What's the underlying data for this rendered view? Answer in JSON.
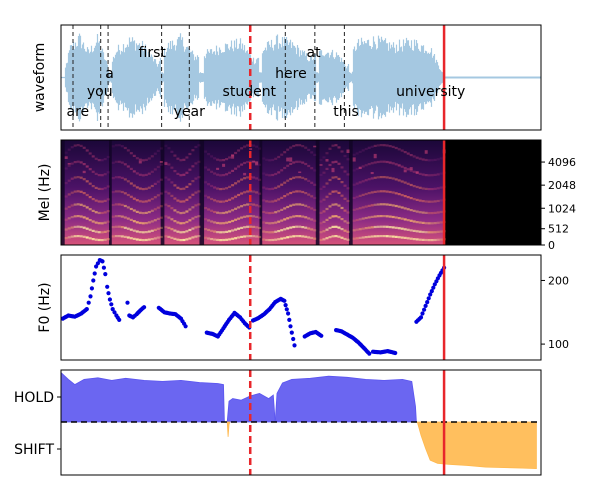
{
  "chart_data": [
    {
      "type": "line",
      "panel": "waveform",
      "ylabel": "waveform",
      "xlim": [
        0,
        5.2
      ],
      "words": [
        {
          "text": "are",
          "t": 0.06,
          "row": 3
        },
        {
          "text": "you",
          "t": 0.28,
          "row": 2
        },
        {
          "text": "a",
          "t": 0.48,
          "row": 1
        },
        {
          "text": "first",
          "t": 0.84,
          "row": 0
        },
        {
          "text": "year",
          "t": 1.22,
          "row": 3
        },
        {
          "text": "student",
          "t": 1.75,
          "row": 2
        },
        {
          "text": "here",
          "t": 2.32,
          "row": 1
        },
        {
          "text": "at",
          "t": 2.66,
          "row": 0
        },
        {
          "text": "this",
          "t": 2.95,
          "row": 3
        },
        {
          "text": "university",
          "t": 3.63,
          "row": 2
        }
      ],
      "boundaries": [
        0.13,
        0.43,
        0.51,
        1.09,
        1.39,
        2.43,
        2.75,
        3.07
      ],
      "vad_segments": [
        [
          0.04,
          0.52
        ],
        [
          0.55,
          1.08
        ],
        [
          1.12,
          1.5
        ],
        [
          1.55,
          2.15
        ],
        [
          2.18,
          2.76
        ],
        [
          2.8,
          3.12
        ],
        [
          3.16,
          4.15
        ]
      ],
      "amplitude_envelope": [
        [
          0.04,
          0.15
        ],
        [
          0.1,
          0.7
        ],
        [
          0.2,
          0.95
        ],
        [
          0.3,
          0.6
        ],
        [
          0.4,
          0.92
        ],
        [
          0.52,
          0.2
        ],
        [
          0.6,
          0.65
        ],
        [
          0.75,
          0.9
        ],
        [
          0.9,
          0.75
        ],
        [
          1.05,
          0.3
        ],
        [
          1.15,
          0.75
        ],
        [
          1.3,
          0.92
        ],
        [
          1.45,
          0.5
        ],
        [
          1.6,
          0.6
        ],
        [
          1.75,
          0.75
        ],
        [
          1.95,
          0.82
        ],
        [
          2.1,
          0.4
        ],
        [
          2.2,
          0.7
        ],
        [
          2.35,
          0.9
        ],
        [
          2.5,
          0.8
        ],
        [
          2.7,
          0.45
        ],
        [
          2.85,
          0.65
        ],
        [
          3.0,
          0.55
        ],
        [
          3.1,
          0.25
        ],
        [
          3.2,
          0.8
        ],
        [
          3.4,
          0.9
        ],
        [
          3.6,
          0.75
        ],
        [
          3.8,
          0.85
        ],
        [
          4.0,
          0.7
        ],
        [
          4.15,
          0.05
        ]
      ],
      "vlines": [
        {
          "t": 2.05,
          "style": "dashed",
          "color": "#e8262b"
        },
        {
          "t": 4.15,
          "style": "solid",
          "color": "#e8262b"
        }
      ]
    },
    {
      "type": "heatmap",
      "panel": "mel",
      "ylabel": "Mel (Hz)",
      "xlim": [
        0,
        5.2
      ],
      "yticks": [
        "0",
        "512",
        "1024",
        "2048",
        "4096"
      ],
      "ytick_fracs": [
        0.0,
        0.155,
        0.35,
        0.57,
        0.79
      ],
      "signal_end": 4.15,
      "vad_segments": [
        [
          0.04,
          0.52
        ],
        [
          0.55,
          1.08
        ],
        [
          1.12,
          1.5
        ],
        [
          1.55,
          2.15
        ],
        [
          2.18,
          2.76
        ],
        [
          2.8,
          3.12
        ],
        [
          3.16,
          4.15
        ]
      ],
      "vlines": [
        {
          "t": 2.05,
          "style": "dashed",
          "color": "#e8262b"
        },
        {
          "t": 4.15,
          "style": "solid",
          "color": "#e8262b"
        }
      ]
    },
    {
      "type": "scatter",
      "panel": "f0",
      "ylabel": "F0 (Hz)",
      "xlim": [
        0,
        5.2
      ],
      "ylim": [
        75,
        240
      ],
      "yticks": [
        100,
        200
      ],
      "marker_color": "#0000dd",
      "segments": [
        [
          [
            0.02,
            140
          ],
          [
            0.08,
            145
          ],
          [
            0.15,
            143
          ],
          [
            0.22,
            148
          ],
          [
            0.28,
            155
          ],
          [
            0.32,
            175
          ],
          [
            0.35,
            200
          ],
          [
            0.38,
            222
          ],
          [
            0.42,
            232
          ],
          [
            0.45,
            230
          ],
          [
            0.48,
            210
          ],
          [
            0.5,
            190
          ],
          [
            0.53,
            170
          ],
          [
            0.56,
            155
          ],
          [
            0.6,
            145
          ],
          [
            0.63,
            138
          ]
        ],
        [
          [
            0.72,
            165
          ]
        ],
        [
          [
            0.74,
            145
          ],
          [
            0.78,
            142
          ],
          [
            0.82,
            147
          ],
          [
            0.86,
            153
          ],
          [
            0.9,
            158
          ]
        ],
        [
          [
            1.06,
            157
          ],
          [
            1.12,
            150
          ],
          [
            1.18,
            148
          ],
          [
            1.24,
            147
          ],
          [
            1.3,
            140
          ],
          [
            1.35,
            128
          ]
        ],
        [
          [
            1.58,
            118
          ],
          [
            1.64,
            116
          ],
          [
            1.7,
            112
          ],
          [
            1.76,
            125
          ],
          [
            1.82,
            138
          ],
          [
            1.88,
            149
          ],
          [
            1.94,
            142
          ],
          [
            1.99,
            133
          ],
          [
            2.04,
            126
          ]
        ],
        [
          [
            2.08,
            137
          ],
          [
            2.14,
            141
          ],
          [
            2.2,
            147
          ],
          [
            2.26,
            155
          ],
          [
            2.32,
            166
          ],
          [
            2.38,
            171
          ],
          [
            2.42,
            168
          ],
          [
            2.46,
            148
          ],
          [
            2.5,
            118
          ],
          [
            2.53,
            98
          ]
        ],
        [
          [
            2.64,
            112
          ],
          [
            2.7,
            117
          ],
          [
            2.76,
            119
          ],
          [
            2.82,
            113
          ]
        ],
        [
          [
            2.98,
            122
          ],
          [
            3.04,
            120
          ],
          [
            3.1,
            115
          ],
          [
            3.16,
            110
          ],
          [
            3.22,
            103
          ],
          [
            3.28,
            94
          ],
          [
            3.34,
            85
          ]
        ],
        [
          [
            3.38,
            88
          ],
          [
            3.46,
            87
          ],
          [
            3.54,
            89
          ],
          [
            3.62,
            86
          ]
        ],
        [
          [
            3.85,
            135
          ],
          [
            3.9,
            142
          ],
          [
            3.95,
            160
          ],
          [
            4.0,
            178
          ],
          [
            4.05,
            194
          ],
          [
            4.1,
            208
          ],
          [
            4.15,
            220
          ]
        ]
      ],
      "vlines": [
        {
          "t": 2.05,
          "style": "dashed",
          "color": "#e8262b"
        },
        {
          "t": 4.15,
          "style": "solid",
          "color": "#e8262b"
        }
      ]
    },
    {
      "type": "area",
      "panel": "turn",
      "yticklabels": [
        "HOLD",
        "SHIFT"
      ],
      "xlim": [
        0,
        5.2
      ],
      "ylim": [
        -1,
        1
      ],
      "threshold": 0,
      "colors": {
        "hold": "#5b55f0",
        "shift": "#ffb84d"
      },
      "series": [
        {
          "name": "HOLD",
          "points": [
            [
              0.0,
              0.95
            ],
            [
              0.08,
              0.82
            ],
            [
              0.15,
              0.72
            ],
            [
              0.25,
              0.82
            ],
            [
              0.4,
              0.85
            ],
            [
              0.55,
              0.8
            ],
            [
              0.7,
              0.84
            ],
            [
              0.9,
              0.8
            ],
            [
              1.1,
              0.78
            ],
            [
              1.3,
              0.8
            ],
            [
              1.5,
              0.76
            ],
            [
              1.7,
              0.74
            ],
            [
              1.76,
              0.72
            ],
            [
              1.77,
              0.0
            ]
          ]
        },
        {
          "name": "HOLD",
          "points": [
            [
              1.8,
              0.0
            ],
            [
              1.82,
              0.4
            ],
            [
              1.86,
              0.45
            ],
            [
              1.95,
              0.42
            ],
            [
              2.05,
              0.5
            ],
            [
              2.15,
              0.55
            ],
            [
              2.25,
              0.45
            ],
            [
              2.3,
              0.52
            ],
            [
              2.32,
              0.0
            ]
          ]
        },
        {
          "name": "HOLD",
          "points": [
            [
              2.32,
              0.0
            ],
            [
              2.34,
              0.55
            ],
            [
              2.4,
              0.75
            ],
            [
              2.5,
              0.82
            ],
            [
              2.7,
              0.84
            ],
            [
              2.9,
              0.88
            ],
            [
              3.1,
              0.86
            ],
            [
              3.3,
              0.82
            ],
            [
              3.5,
              0.8
            ],
            [
              3.7,
              0.82
            ],
            [
              3.8,
              0.78
            ],
            [
              3.84,
              0.3
            ],
            [
              3.85,
              0.0
            ]
          ]
        },
        {
          "name": "SHIFT",
          "points": [
            [
              1.8,
              0.0
            ],
            [
              1.81,
              -0.28
            ],
            [
              1.82,
              -0.05
            ],
            [
              1.83,
              0.0
            ]
          ]
        },
        {
          "name": "SHIFT",
          "points": [
            [
              3.86,
              0.0
            ],
            [
              3.9,
              -0.25
            ],
            [
              3.95,
              -0.5
            ],
            [
              4.0,
              -0.72
            ],
            [
              4.08,
              -0.78
            ],
            [
              4.2,
              -0.8
            ],
            [
              4.4,
              -0.82
            ],
            [
              4.6,
              -0.85
            ],
            [
              4.8,
              -0.86
            ],
            [
              5.0,
              -0.87
            ],
            [
              5.15,
              -0.88
            ]
          ]
        }
      ],
      "vlines": [
        {
          "t": 2.05,
          "style": "dashed",
          "color": "#e8262b"
        },
        {
          "t": 4.15,
          "style": "solid",
          "color": "#e8262b"
        }
      ]
    }
  ]
}
